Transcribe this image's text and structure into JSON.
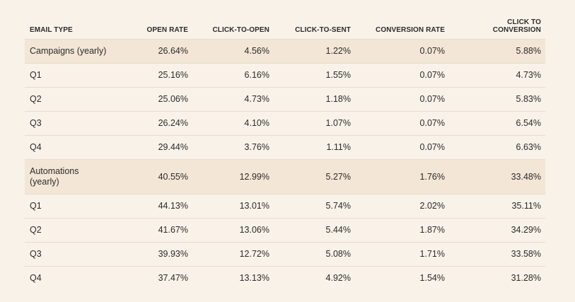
{
  "table": {
    "headers": [
      "EMAIL TYPE",
      "OPEN RATE",
      "CLICK-TO-OPEN",
      "CLICK-TO-SENT",
      "CONVERSION RATE",
      "CLICK TO CONVERSION"
    ],
    "rows": [
      {
        "type": "Campaigns (yearly)",
        "open_rate": "26.64%",
        "click_to_open": "4.56%",
        "click_to_sent": "1.22%",
        "conversion_rate": "0.07%",
        "click_to_conversion": "5.88%"
      },
      {
        "type": "Q1",
        "open_rate": "25.16%",
        "click_to_open": "6.16%",
        "click_to_sent": "1.55%",
        "conversion_rate": "0.07%",
        "click_to_conversion": "4.73%"
      },
      {
        "type": "Q2",
        "open_rate": "25.06%",
        "click_to_open": "4.73%",
        "click_to_sent": "1.18%",
        "conversion_rate": "0.07%",
        "click_to_conversion": "5.83%"
      },
      {
        "type": "Q3",
        "open_rate": "26.24%",
        "click_to_open": "4.10%",
        "click_to_sent": "1.07%",
        "conversion_rate": "0.07%",
        "click_to_conversion": "6.54%"
      },
      {
        "type": "Q4",
        "open_rate": "29.44%",
        "click_to_open": "3.76%",
        "click_to_sent": "1.11%",
        "conversion_rate": "0.07%",
        "click_to_conversion": "6.63%"
      },
      {
        "type": "Automations (yearly)",
        "open_rate": "40.55%",
        "click_to_open": "12.99%",
        "click_to_sent": "5.27%",
        "conversion_rate": "1.76%",
        "click_to_conversion": "33.48%"
      },
      {
        "type": "Q1",
        "open_rate": "44.13%",
        "click_to_open": "13.01%",
        "click_to_sent": "5.74%",
        "conversion_rate": "2.02%",
        "click_to_conversion": "35.11%"
      },
      {
        "type": "Q2",
        "open_rate": "41.67%",
        "click_to_open": "13.06%",
        "click_to_sent": "5.44%",
        "conversion_rate": "1.87%",
        "click_to_conversion": "34.29%"
      },
      {
        "type": "Q3",
        "open_rate": "39.93%",
        "click_to_open": "12.72%",
        "click_to_sent": "5.08%",
        "conversion_rate": "1.71%",
        "click_to_conversion": "33.58%"
      },
      {
        "type": "Q4",
        "open_rate": "37.47%",
        "click_to_open": "13.13%",
        "click_to_sent": "4.92%",
        "conversion_rate": "1.54%",
        "click_to_conversion": "31.28%"
      }
    ]
  },
  "colors": {
    "page_background": "#f9f2e8",
    "yearly_row_background": "#f3e6d6",
    "text": "#2b2b2b",
    "row_divider": "#e6ddd0"
  }
}
